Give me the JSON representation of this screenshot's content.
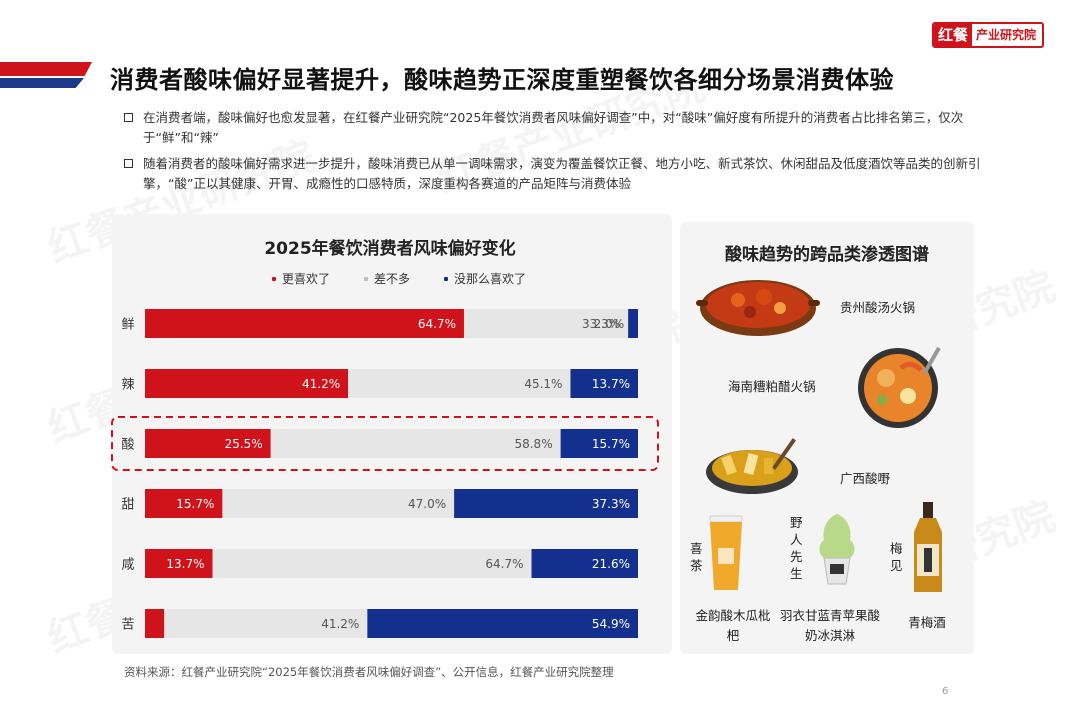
{
  "header": {
    "logo_main": "红餐",
    "logo_sub": "产业研究院",
    "title": "消费者酸味偏好显著提升，酸味趋势正深度重塑餐饮各细分场景消费体验"
  },
  "bullets": [
    "在消费者端，酸味偏好也愈发显著，在红餐产业研究院“2025年餐饮消费者风味偏好调查”中，对“酸味”偏好度有所提升的消费者占比排名第三，仅次于“鲜”和“辣”",
    "随着消费者的酸味偏好需求进一步提升，酸味消费已从单一调味需求，演变为覆盖餐饮正餐、地方小吃、新式茶饮、休闲甜品及低度酒饮等品类的创新引擎，“酸”正以其健康、开胃、成瘾性的口感特质，深度重构各赛道的产品矩阵与消费体验"
  ],
  "chart_data": {
    "type": "bar",
    "orientation": "horizontal",
    "stacked": true,
    "title": "2025年餐饮消费者风味偏好变化",
    "categories": [
      "鲜",
      "辣",
      "酸",
      "甜",
      "咸",
      "苦"
    ],
    "series": [
      {
        "name": "更喜欢了",
        "values": [
          64.7,
          41.2,
          25.5,
          15.7,
          13.7,
          3.9
        ],
        "color": "#d0121b"
      },
      {
        "name": "差不多",
        "values": [
          33.3,
          45.1,
          58.8,
          47.0,
          64.7,
          41.2
        ],
        "color": "#e6e6e6"
      },
      {
        "name": "没那么喜欢了",
        "values": [
          2.0,
          13.7,
          15.7,
          37.3,
          21.6,
          54.9
        ],
        "color": "#14308f"
      }
    ],
    "value_labels": [
      [
        "64.7%",
        "33.3%",
        "2.0%"
      ],
      [
        "41.2%",
        "45.1%",
        "13.7%"
      ],
      [
        "25.5%",
        "58.8%",
        "15.7%"
      ],
      [
        "15.7%",
        "47.0%",
        "37.3%"
      ],
      [
        "13.7%",
        "64.7%",
        "21.6%"
      ],
      [
        "3.9%",
        "41.2%",
        "54.9%"
      ]
    ],
    "highlight_category": "酸",
    "xlim": [
      0,
      100
    ],
    "legend_position": "top"
  },
  "panel": {
    "title": "酸味趋势的跨品类渗透图谱",
    "items": {
      "guizhou": "贵州酸汤火锅",
      "hainan": "海南糟粕醋火锅",
      "guangxi": "广西酸嘢",
      "xicha": "喜茶",
      "xicha_product": "金韵酸木瓜枇杷",
      "yeren": "野人先生",
      "yeren_product": "羽衣甘蓝青苹果酸奶冰淇淋",
      "meijian": "梅见",
      "meijian_product": "青梅酒"
    }
  },
  "watermark": "红餐产业研究院",
  "footer": {
    "source": "资料来源：红餐产业研究院“2025年餐饮消费者风味偏好调查”、公开信息，红餐产业研究院整理",
    "page": "6"
  }
}
